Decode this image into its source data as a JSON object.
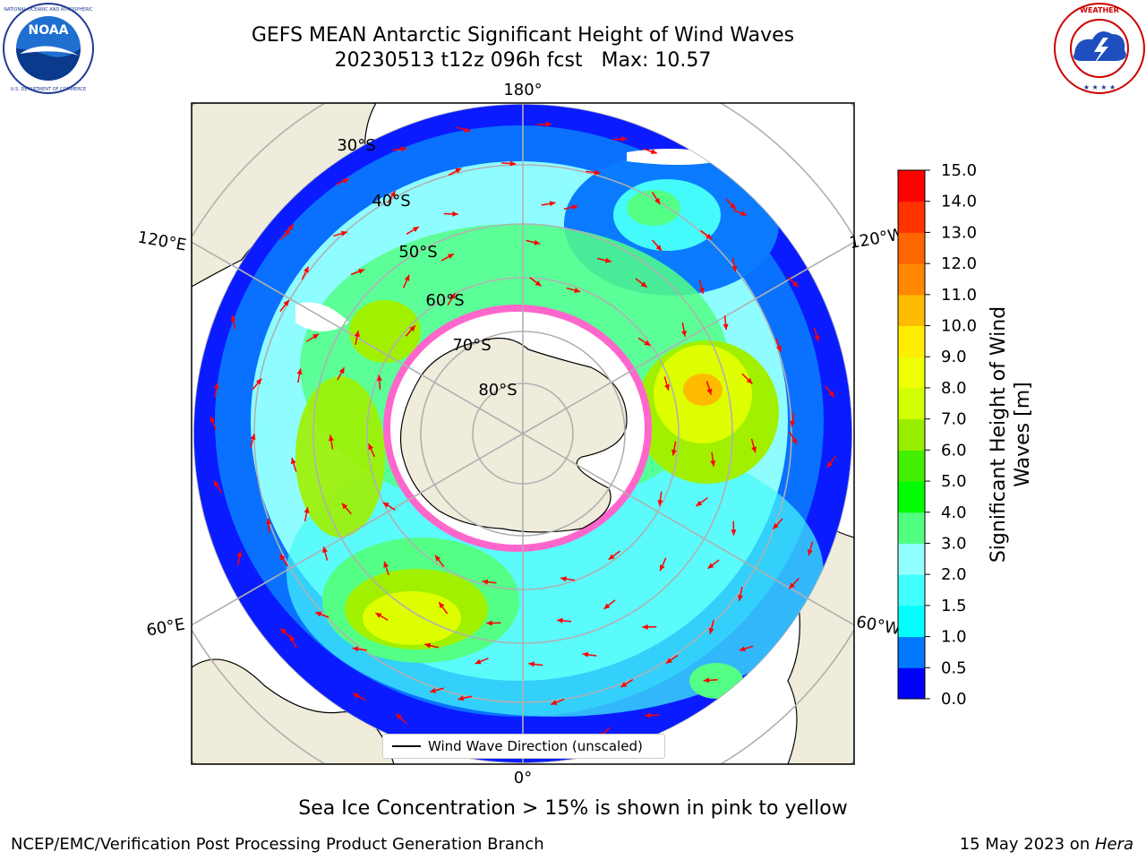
{
  "title": {
    "line1": "GEFS MEAN Antarctic Significant Height of Wind Waves",
    "line2": "20230513 t12z 096h fcst   Max: 10.57"
  },
  "logos": {
    "left": {
      "name": "noaa-logo",
      "text": "NOAA",
      "ring_text": "NATIONAL OCEANIC AND ATMOSPHERIC ADMINISTRATION · U.S. DEPARTMENT OF COMMERCE"
    },
    "right": {
      "name": "nws-logo",
      "ring_text": "NATIONAL WEATHER SERVICE"
    }
  },
  "map": {
    "projection": "south-polar-stereographic",
    "longitude_labels": [
      "180°",
      "120°E",
      "120°W",
      "60°E",
      "60°W",
      "0°"
    ],
    "latitude_labels": [
      "30°S",
      "40°S",
      "50°S",
      "60°S",
      "70°S",
      "80°S"
    ],
    "legend_text": "Wind Wave Direction (unscaled)",
    "colors": {
      "land": "#efecdc",
      "ice": "#ff66cc",
      "arrow": "#ff0000"
    }
  },
  "colorbar": {
    "label": "Significant Height of Wind Waves [m]",
    "label_line1": "Significant Height of Wind",
    "label_line2": "Waves [m]",
    "ticks": [
      "0.0",
      "0.5",
      "1.0",
      "1.5",
      "2.0",
      "3.0",
      "4.0",
      "5.0",
      "6.0",
      "7.0",
      "8.0",
      "9.0",
      "10.0",
      "11.0",
      "12.0",
      "13.0",
      "14.0",
      "15.0"
    ],
    "colors": [
      "#0000ff",
      "#0078ff",
      "#00ffff",
      "#40ffff",
      "#90ffff",
      "#50ff80",
      "#00ff00",
      "#44ee00",
      "#99ee00",
      "#cfff00",
      "#eeff00",
      "#ffee00",
      "#ffbb00",
      "#ff8800",
      "#ff6600",
      "#ff3300",
      "#ff0000"
    ]
  },
  "note": "Sea Ice Concentration > 15% is shown in pink to yellow",
  "footer": {
    "left": "NCEP/EMC/Verification Post Processing Product Generation Branch",
    "right_prefix": "15 May 2023 on ",
    "right_host": "Hera"
  }
}
